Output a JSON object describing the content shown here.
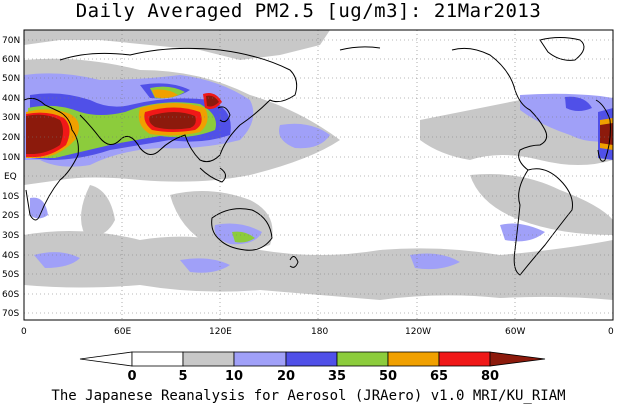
{
  "title": "Daily Averaged PM2.5 [ug/m3]: 21Mar2013",
  "footer": "The Japanese Reanalysis for Aerosol (JRAero) v1.0 MRI/KU_RIAM",
  "lat_labels": [
    "70N",
    "60N",
    "50N",
    "40N",
    "30N",
    "20N",
    "10N",
    "EQ",
    "10S",
    "20S",
    "30S",
    "40S",
    "50S",
    "60S",
    "70S"
  ],
  "lon_labels": [
    "0",
    "60E",
    "120E",
    "180",
    "120W",
    "60W",
    "0"
  ],
  "colorbar": {
    "levels": [
      "0",
      "5",
      "10",
      "20",
      "35",
      "50",
      "65",
      "80"
    ],
    "colors": [
      "#ffffff",
      "#c8c8c8",
      "#a0a0f8",
      "#5050e8",
      "#8ccc3c",
      "#f0a000",
      "#f01818",
      "#8c1a0c"
    ]
  }
}
